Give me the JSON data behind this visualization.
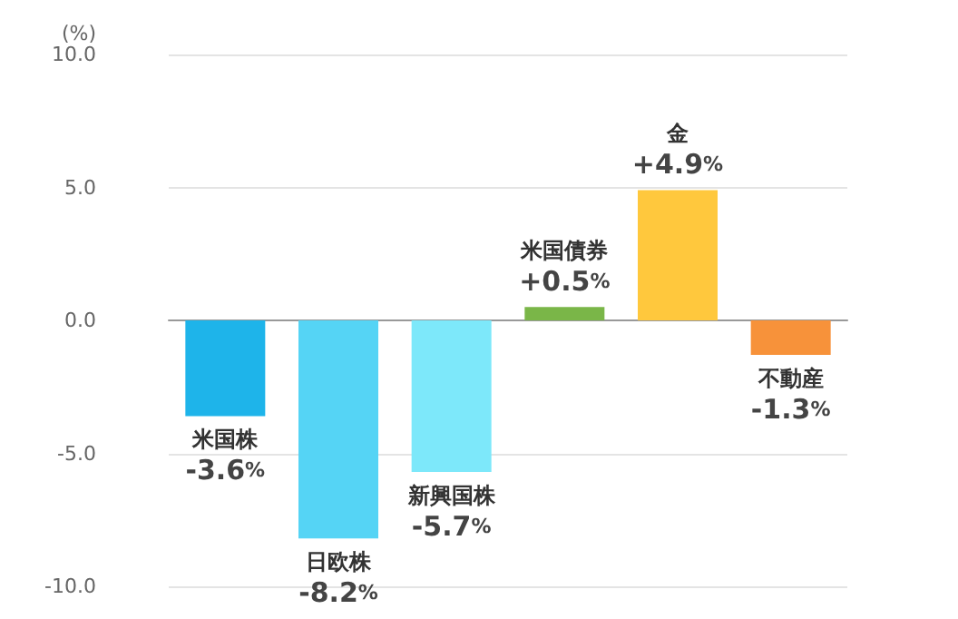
{
  "chart_data": {
    "type": "bar",
    "ylabel": "(%)",
    "categories": [
      "米国株",
      "日欧株",
      "新興国株",
      "米国債券",
      "金",
      "不動産"
    ],
    "values": [
      -3.6,
      -8.2,
      -5.7,
      0.5,
      4.9,
      -1.3
    ],
    "colors": [
      "#1eb4ea",
      "#55d4f5",
      "#7de8fa",
      "#7ab648",
      "#ffc83d",
      "#f7923a"
    ],
    "value_labels": [
      "-3.6%",
      "-8.2%",
      "-5.7%",
      "+0.5%",
      "+4.9%",
      "-1.3%"
    ],
    "ylim": [
      -10,
      10
    ],
    "yticks": [
      {
        "value": -10,
        "label": "-10.0"
      },
      {
        "value": -5,
        "label": "-5.0"
      },
      {
        "value": 0,
        "label": "0.0"
      },
      {
        "value": 5,
        "label": "5.0"
      },
      {
        "value": 10,
        "label": "10.0"
      }
    ],
    "tick_labels": "y",
    "grid": "y"
  }
}
